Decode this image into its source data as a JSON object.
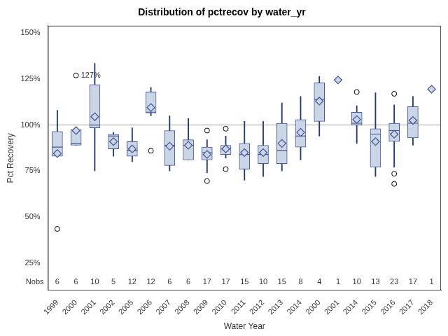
{
  "chart_data": {
    "type": "box",
    "title": "Distribution of pctrecov by water_yr",
    "x_label": "Water Year",
    "y_label": "Pct Recovery",
    "nobs_label": "Nobs",
    "categories": [
      "1999",
      "2000",
      "2001",
      "2002",
      "2005",
      "2006",
      "2007",
      "2008",
      "2009",
      "2010",
      "2011",
      "2012",
      "2013",
      "2014",
      "2000",
      "2001",
      "2014",
      "2015",
      "2016",
      "2017",
      "2018"
    ],
    "whisker_low": [
      82.5,
      89,
      75,
      83,
      80,
      105,
      75,
      81,
      74,
      82,
      70,
      72,
      75,
      81,
      94,
      null,
      90,
      72,
      77,
      89,
      null
    ],
    "q1": [
      83,
      89,
      98.5,
      87,
      83,
      106.5,
      78,
      81,
      81,
      84,
      76,
      79,
      79,
      88,
      102,
      null,
      100,
      77,
      91,
      93,
      null
    ],
    "median": [
      88,
      90,
      100,
      94,
      86,
      107,
      89,
      89,
      85,
      87,
      84,
      84,
      86,
      94,
      114,
      null,
      101,
      95,
      97,
      101,
      null
    ],
    "q3": [
      96.5,
      97.5,
      122,
      95,
      91,
      118,
      97,
      92,
      88,
      89,
      90,
      89,
      101,
      103,
      123,
      null,
      107,
      98,
      101,
      110,
      null
    ],
    "whisker_high": [
      108,
      97.5,
      133.5,
      96,
      98.5,
      120.5,
      105,
      103.5,
      92,
      94,
      102,
      102,
      112,
      115.5,
      126.5,
      null,
      110.5,
      117.5,
      111,
      115.5,
      null
    ],
    "mean": [
      84.5,
      97,
      104.5,
      91,
      87,
      109.5,
      88.5,
      89,
      84,
      87,
      85,
      85,
      90,
      96,
      113,
      124.5,
      103,
      91,
      95,
      102.5,
      119.5
    ],
    "outliers": [
      [
        43.5
      ],
      [
        127
      ],
      [],
      [],
      [],
      [
        86
      ],
      [],
      [],
      [
        97,
        69.5
      ],
      [
        98,
        76
      ],
      [],
      [],
      [],
      [],
      [],
      [],
      [
        118
      ],
      [],
      [
        117,
        73.5,
        68
      ],
      [],
      []
    ],
    "nobs": [
      6,
      6,
      10,
      5,
      12,
      12,
      6,
      6,
      17,
      17,
      15,
      10,
      15,
      8,
      4,
      1,
      10,
      13,
      23,
      17,
      1
    ],
    "annotations": [
      {
        "text": "127%",
        "x": 1,
        "y": 127
      }
    ],
    "reference_line": 100,
    "ylim": [
      10,
      154
    ],
    "yticks": [
      {
        "value": 25,
        "label": "25%"
      },
      {
        "value": 50,
        "label": "50%"
      },
      {
        "value": 75,
        "label": "75%"
      },
      {
        "value": 100,
        "label": "100%"
      },
      {
        "value": 125,
        "label": "125%"
      },
      {
        "value": 150,
        "label": "150%"
      }
    ],
    "grid": false,
    "color": "#cad5e5"
  }
}
